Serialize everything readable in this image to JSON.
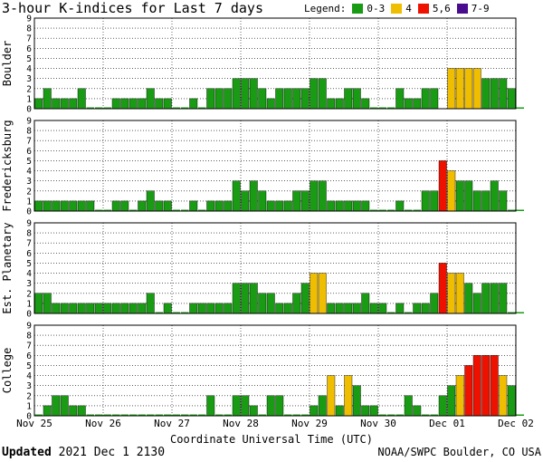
{
  "title": "3-hour K-indices for Last 7 days",
  "legend": {
    "label": "Legend:",
    "items": [
      {
        "label": "0-3",
        "color": "#1a9b14"
      },
      {
        "label": "4",
        "color": "#f0be00"
      },
      {
        "label": "5,6",
        "color": "#ee1100"
      },
      {
        "label": "7-9",
        "color": "#4a0c8e"
      }
    ]
  },
  "footer": {
    "updated_label": "Updated",
    "updated_value": "2021 Dec  1 2130",
    "credit": "NOAA/SWPC Boulder, CO USA"
  },
  "chart_data": {
    "type": "bar",
    "xlabel": "Coordinate Universal Time (UTC)",
    "x_ticks": [
      "Nov 25",
      "Nov 26",
      "Nov 27",
      "Nov 28",
      "Nov 29",
      "Nov 30",
      "Dec 01",
      "Dec 02"
    ],
    "ylim": [
      0,
      9
    ],
    "y_ticks": [
      0,
      1,
      2,
      3,
      4,
      5,
      6,
      7,
      8,
      9
    ],
    "bins_per_day": 8,
    "panels": [
      {
        "name": "Boulder",
        "values": [
          1,
          2,
          1,
          1,
          1,
          2,
          0,
          0,
          0,
          1,
          1,
          1,
          1,
          2,
          1,
          1,
          0,
          0,
          1,
          0,
          2,
          2,
          2,
          3,
          3,
          3,
          2,
          1,
          2,
          2,
          2,
          2,
          3,
          3,
          1,
          1,
          2,
          2,
          1,
          0,
          0,
          0,
          2,
          1,
          1,
          2,
          2,
          null,
          4,
          4,
          4,
          4,
          3,
          3,
          3,
          2,
          0
        ]
      },
      {
        "name": "Fredericksburg",
        "values": [
          1,
          1,
          1,
          1,
          1,
          1,
          1,
          0,
          0,
          1,
          1,
          0,
          1,
          2,
          1,
          1,
          0,
          0,
          1,
          0,
          1,
          1,
          1,
          3,
          2,
          3,
          2,
          1,
          1,
          1,
          2,
          2,
          3,
          3,
          1,
          1,
          1,
          1,
          1,
          0,
          0,
          0,
          1,
          0,
          0,
          2,
          2,
          5,
          4,
          3,
          3,
          2,
          2,
          3,
          2,
          0,
          0
        ]
      },
      {
        "name": "Est. Planetary",
        "values": [
          2,
          2,
          1,
          1,
          1,
          1,
          1,
          1,
          1,
          1,
          1,
          1,
          1,
          2,
          0,
          1,
          0,
          0,
          1,
          1,
          1,
          1,
          1,
          3,
          3,
          3,
          2,
          2,
          1,
          1,
          2,
          3,
          4,
          4,
          1,
          1,
          1,
          1,
          2,
          1,
          1,
          0,
          1,
          0,
          1,
          1,
          2,
          5,
          4,
          4,
          3,
          2,
          3,
          3,
          3,
          0,
          0
        ]
      },
      {
        "name": "College",
        "values": [
          0,
          1,
          2,
          2,
          1,
          1,
          0,
          0,
          0,
          0,
          0,
          0,
          0,
          0,
          0,
          0,
          0,
          0,
          0,
          0,
          2,
          0,
          0,
          2,
          2,
          1,
          0,
          2,
          2,
          0,
          0,
          0,
          1,
          2,
          4,
          1,
          4,
          3,
          1,
          1,
          0,
          0,
          0,
          2,
          1,
          0,
          0,
          2,
          3,
          4,
          5,
          6,
          6,
          6,
          4,
          3,
          0
        ]
      }
    ]
  }
}
